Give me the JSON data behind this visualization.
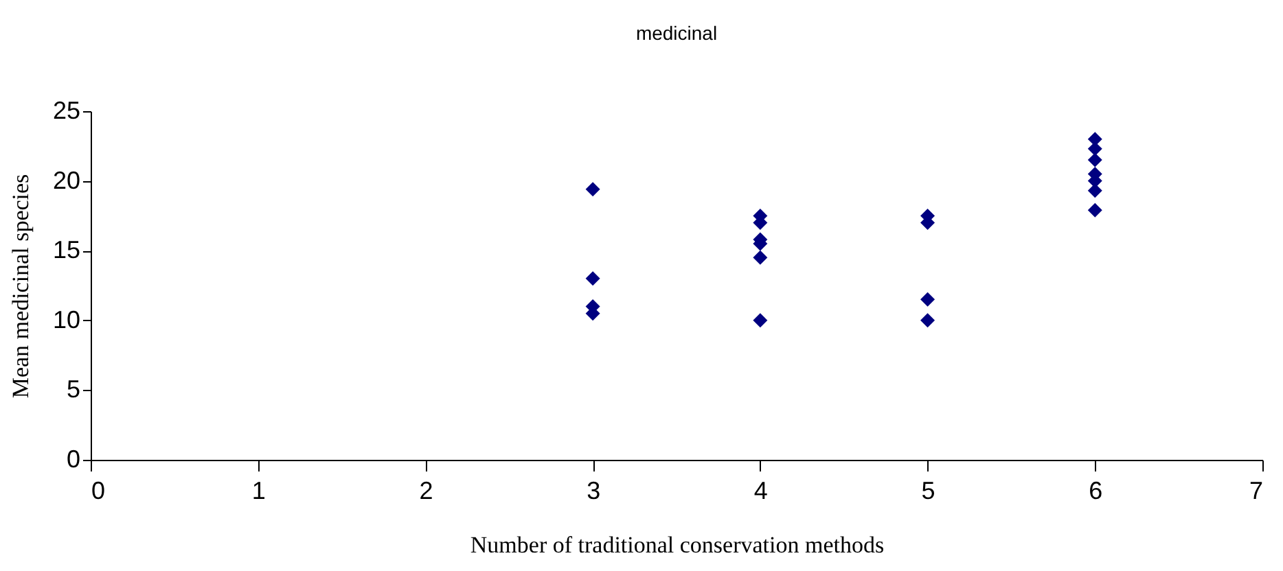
{
  "chart_data": {
    "type": "scatter",
    "title": "medicinal",
    "xlabel": "Number of traditional conservation methods",
    "ylabel": "Mean medicinal species",
    "series": [
      {
        "color": "#000080",
        "x": [
          3,
          3,
          3,
          3,
          4,
          4,
          4,
          4,
          4,
          4,
          5,
          5,
          5,
          5,
          6,
          6,
          6,
          6,
          6,
          6,
          6
        ],
        "values": [
          19.4,
          13,
          11,
          10.5,
          17.5,
          17,
          15.8,
          15.5,
          14.5,
          10,
          17.5,
          17,
          11.5,
          10,
          23,
          22.3,
          21.5,
          20.5,
          20,
          19.3,
          17.9
        ]
      }
    ],
    "xlim": [
      0,
      7
    ],
    "xticks": [
      0,
      1,
      2,
      3,
      4,
      5,
      6,
      7
    ],
    "ylim": [
      0,
      25
    ],
    "yticks": [
      0,
      5,
      10,
      15,
      20,
      25
    ],
    "marker": "diamond",
    "grid": false
  }
}
